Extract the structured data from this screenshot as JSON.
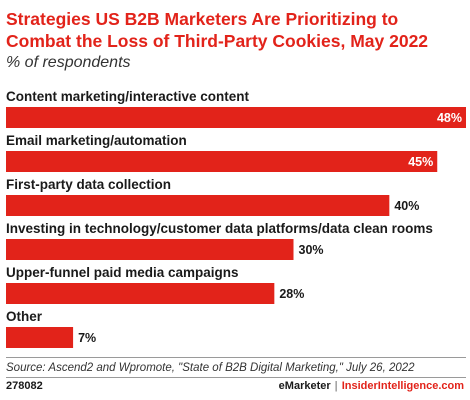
{
  "header": {
    "title": "Strategies US B2B Marketers Are Prioritizing to Combat the Loss of Third-Party Cookies, May 2022",
    "subtitle": "% of respondents"
  },
  "chart_data": {
    "type": "bar",
    "orientation": "horizontal",
    "categories": [
      "Content marketing/interactive content",
      "Email marketing/automation",
      "First-party data collection",
      "Investing in technology/customer data platforms/data clean rooms",
      "Upper-funnel paid media campaigns",
      "Other"
    ],
    "values": [
      48,
      45,
      40,
      30,
      28,
      7
    ],
    "value_labels": [
      "48%",
      "45%",
      "40%",
      "30%",
      "28%",
      "7%"
    ],
    "xlim": [
      0,
      48
    ],
    "grid": false,
    "legend": "none",
    "bar_color": "#e2231a"
  },
  "footer": {
    "source": "Source: Ascend2 and Wpromote, \"State of B2B Digital Marketing,\" July 26, 2022",
    "chart_id": "278082",
    "brand_left": "eMarketer",
    "separator": "|",
    "brand_right": "InsiderIntelligence.com"
  }
}
